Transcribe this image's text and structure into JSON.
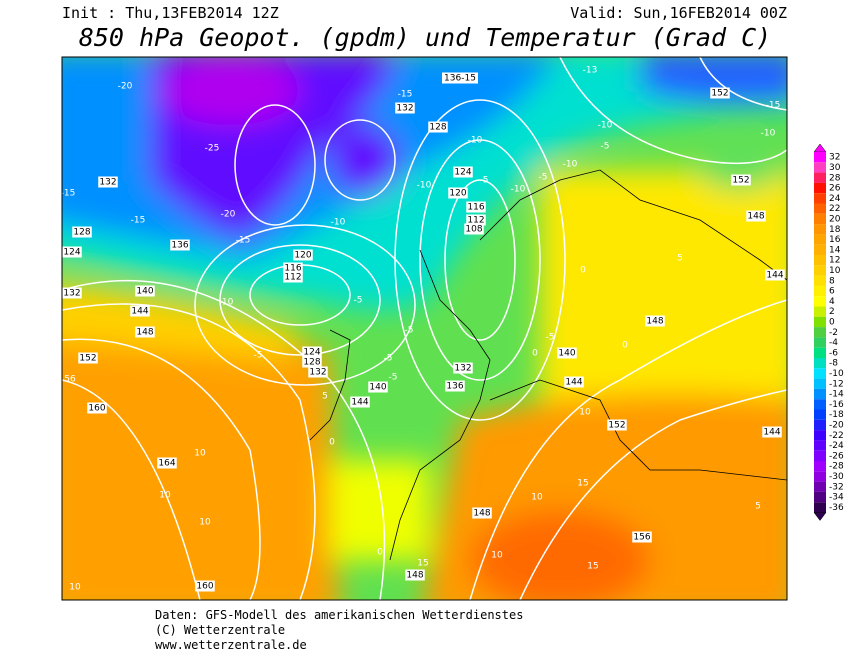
{
  "header": {
    "init": "Init : Thu,13FEB2014 12Z",
    "valid": "Valid: Sun,16FEB2014 00Z",
    "title": "850 hPa Geopot. (gpdm) und Temperatur (Grad C)"
  },
  "colorbar": {
    "labels": [
      32,
      30,
      28,
      26,
      24,
      22,
      20,
      18,
      16,
      14,
      12,
      10,
      8,
      6,
      4,
      2,
      0,
      -2,
      -4,
      -6,
      -8,
      -10,
      -12,
      -14,
      -16,
      -18,
      -20,
      -22,
      -24,
      -26,
      -28,
      -30,
      -32,
      -34,
      -36
    ]
  },
  "map_labels": [
    "-20",
    "-25",
    "-20",
    "-15",
    "-15",
    "-15",
    "132",
    "136",
    "128",
    "124",
    "132",
    "140",
    "144",
    "148",
    "152",
    "56",
    "160",
    "164",
    "10",
    "10",
    "10",
    "10",
    "160",
    "120",
    "116",
    "112",
    "-10",
    "-5",
    "124",
    "128",
    "132",
    "-10",
    "-5",
    "5",
    "0",
    "140",
    "144",
    "-5",
    "-5",
    "-5",
    "136-15",
    "-15",
    "132",
    "128",
    "124",
    "120",
    "116",
    "112",
    "108",
    "-10",
    "-10",
    "-5",
    "-10",
    "-5",
    "-10",
    "-5",
    "-10",
    "-13",
    "152",
    "-15",
    "-10",
    "152",
    "148",
    "5",
    "144",
    "148",
    "0",
    "0",
    "140",
    "144",
    "10",
    "152",
    "144",
    "5",
    "10",
    "15",
    "148",
    "10",
    "15",
    "148",
    "0",
    "156",
    "15",
    "136",
    "132",
    "0",
    "-5"
  ],
  "footer": [
    "Daten: GFS-Modell des amerikanischen Wetterdienstes",
    "(C) Wetterzentrale",
    "www.wetterzentrale.de"
  ]
}
